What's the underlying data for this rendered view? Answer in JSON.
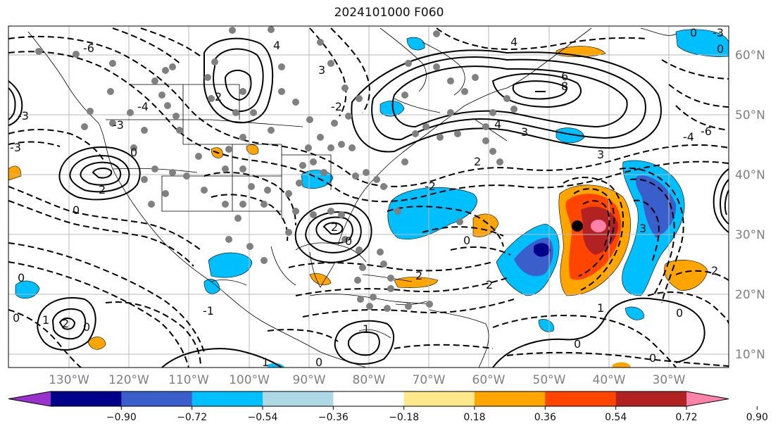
{
  "title": "2024101000 F060",
  "map": {
    "lon_labels": [
      "130°W",
      "120°W",
      "110°W",
      "100°W",
      "90°W",
      "80°W",
      "70°W",
      "60°W",
      "50°W",
      "40°W",
      "30°W"
    ],
    "lat_labels": [
      "60°N",
      "50°N",
      "40°N",
      "30°N",
      "20°N",
      "10°N"
    ],
    "contour_labels": [
      "-6",
      "-4",
      "-3",
      "-2",
      "-1",
      "0",
      "1",
      "2",
      "3",
      "4",
      "6",
      "8"
    ]
  },
  "colorbar": {
    "ticks": [
      "−0.90",
      "−0.72",
      "−0.54",
      "−0.36",
      "−0.18",
      "0.18",
      "0.36",
      "0.54",
      "0.72",
      "0.90"
    ],
    "colors": [
      "#9932cc",
      "#00008b",
      "#3a5fcd",
      "#00bfff",
      "#add8e6",
      "#ffffff",
      "#ffe88a",
      "#ffa500",
      "#ff4500",
      "#b22222",
      "#ff82ab"
    ]
  }
}
